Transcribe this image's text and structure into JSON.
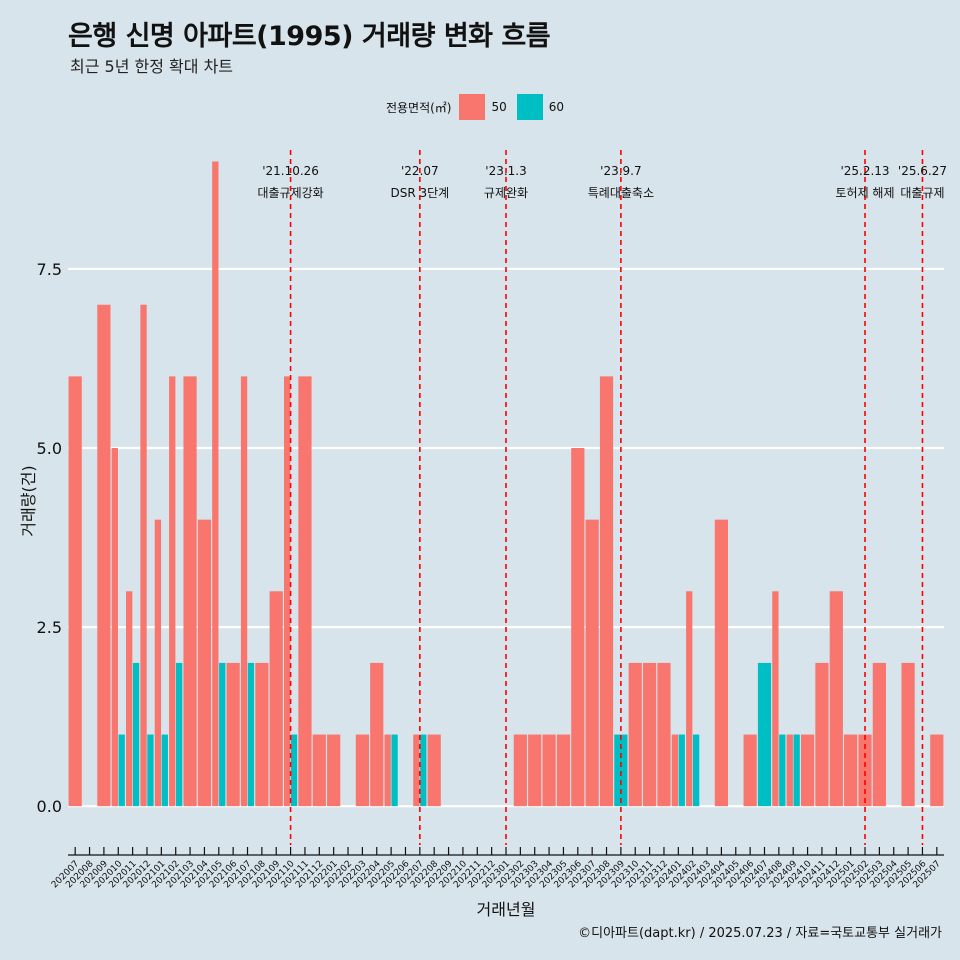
{
  "chart_data": {
    "type": "bar",
    "title": "은행 신명 아파트(1995) 거래량 변화 흐름",
    "subtitle": "최근 5년 한정 확대 차트",
    "xlabel": "거래년월",
    "ylabel": "거래량(건)",
    "ylim": [
      -0.5,
      9.3
    ],
    "yticks": [
      0.0,
      2.5,
      5.0,
      7.5
    ],
    "ytick_labels": [
      "0.0",
      "2.5",
      "5.0",
      "7.5"
    ],
    "legend_title": "전용면적(㎡)",
    "legend_position": "top",
    "categories": [
      "202007",
      "202008",
      "202009",
      "202010",
      "202011",
      "202012",
      "202101",
      "202102",
      "202103",
      "202104",
      "202105",
      "202106",
      "202107",
      "202108",
      "202109",
      "202110",
      "202111",
      "202112",
      "202201",
      "202202",
      "202203",
      "202204",
      "202205",
      "202206",
      "202207",
      "202208",
      "202209",
      "202210",
      "202211",
      "202212",
      "202301",
      "202302",
      "202303",
      "202304",
      "202305",
      "202306",
      "202307",
      "202308",
      "202309",
      "202310",
      "202311",
      "202312",
      "202401",
      "202402",
      "202403",
      "202404",
      "202405",
      "202406",
      "202407",
      "202408",
      "202409",
      "202410",
      "202411",
      "202412",
      "202501",
      "202502",
      "202503",
      "202504",
      "202505",
      "202506",
      "202507"
    ],
    "series": [
      {
        "name": "50",
        "color": "#f8766d",
        "values": [
          6,
          0,
          7,
          5,
          3,
          7,
          4,
          6,
          6,
          4,
          9,
          2,
          6,
          2,
          3,
          6,
          6,
          1,
          1,
          0,
          1,
          2,
          1,
          0,
          1,
          1,
          0,
          0,
          0,
          0,
          0,
          1,
          1,
          1,
          1,
          5,
          4,
          6,
          0,
          2,
          2,
          2,
          1,
          3,
          0,
          4,
          0,
          1,
          0,
          3,
          1,
          1,
          2,
          3,
          1,
          1,
          2,
          0,
          2,
          0,
          1
        ]
      },
      {
        "name": "60",
        "color": "#00bfc4",
        "values": [
          0,
          0,
          0,
          1,
          2,
          1,
          1,
          2,
          0,
          0,
          2,
          0,
          2,
          0,
          0,
          1,
          0,
          0,
          0,
          0,
          0,
          0,
          1,
          0,
          1,
          0,
          0,
          0,
          0,
          0,
          0,
          0,
          0,
          0,
          0,
          0,
          0,
          0,
          1,
          0,
          0,
          0,
          1,
          1,
          0,
          0,
          0,
          0,
          2,
          1,
          1,
          0,
          0,
          0,
          0,
          0,
          0,
          0,
          0,
          0,
          0
        ]
      }
    ],
    "annotations": [
      {
        "category": "202110",
        "date": "'21.10.26",
        "label": "대출규제강화"
      },
      {
        "category": "202207",
        "date": "'22.07",
        "label": "DSR 3단계"
      },
      {
        "category": "202301",
        "date": "'23.1.3",
        "label": "규제완화"
      },
      {
        "category": "202309",
        "date": "'23.9.7",
        "label": "특례대출축소"
      },
      {
        "category": "202502",
        "date": "'25.2.13",
        "label": "토허제 해제"
      },
      {
        "category": "202506",
        "date": "'25.6.27",
        "label": "대출규제"
      }
    ],
    "annotation_color": "#ff0000",
    "grid": true
  },
  "caption": "©디아파트(dapt.kr) / 2025.07.23 / 자료=국토교통부 실거래가"
}
